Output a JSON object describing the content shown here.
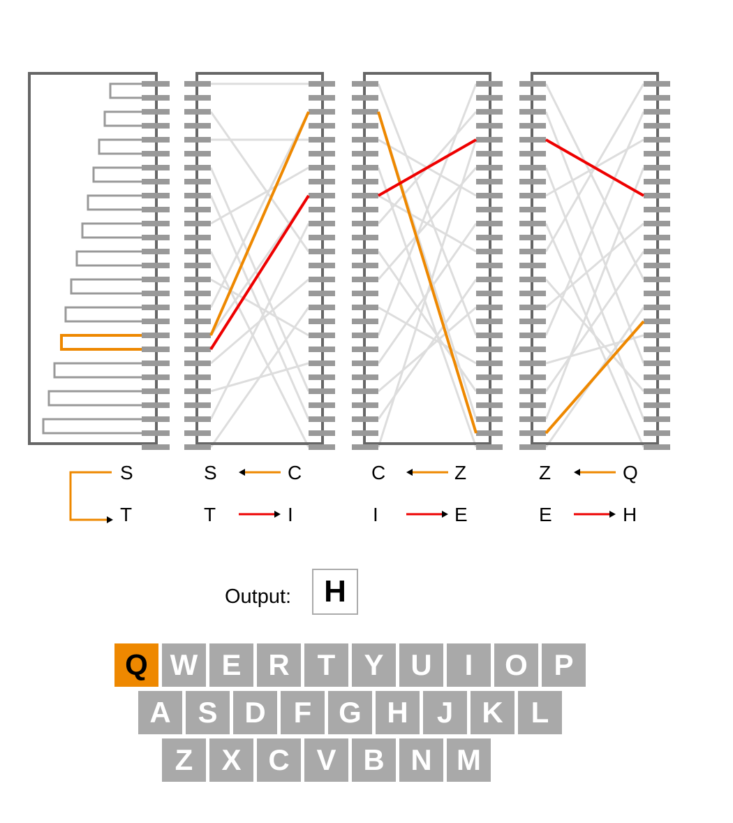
{
  "colors": {
    "frame": "#666666",
    "pin": "#999999",
    "wire": "#dddddd",
    "forward_path": "#ee8800",
    "return_path": "#ee0000",
    "key": "#a9a9a9",
    "key_lit": "#ee8800"
  },
  "reflector": {
    "in_letter": "S",
    "out_letter": "T"
  },
  "rotors": [
    {
      "forward": {
        "left": "S",
        "right": "C"
      },
      "return": {
        "left": "T",
        "right": "I"
      }
    },
    {
      "forward": {
        "left": "C",
        "right": "Z"
      },
      "return": {
        "left": "I",
        "right": "E"
      }
    },
    {
      "forward": {
        "left": "Z",
        "right": "Q"
      },
      "return": {
        "left": "E",
        "right": "H"
      }
    }
  ],
  "output": {
    "label": "Output:",
    "letter": "H"
  },
  "keyboard": {
    "rows": [
      [
        "Q",
        "W",
        "E",
        "R",
        "T",
        "Y",
        "U",
        "I",
        "O",
        "P"
      ],
      [
        "A",
        "S",
        "D",
        "F",
        "G",
        "H",
        "J",
        "K",
        "L"
      ],
      [
        "Z",
        "X",
        "C",
        "V",
        "B",
        "N",
        "M"
      ]
    ],
    "pressed": "Q"
  }
}
